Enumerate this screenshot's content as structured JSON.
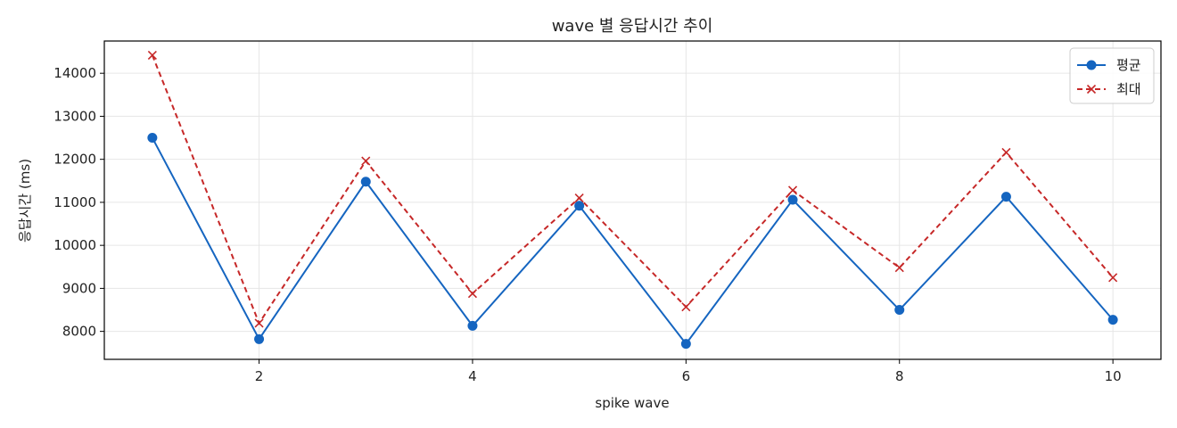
{
  "chart_data": {
    "type": "line",
    "title": "wave 별 응답시간 추이",
    "xlabel": "spike wave",
    "ylabel": "응답시간 (ms)",
    "x": [
      1,
      2,
      3,
      4,
      5,
      6,
      7,
      8,
      9,
      10
    ],
    "xlim": [
      0.55,
      10.45
    ],
    "ylim": [
      7350,
      14750
    ],
    "xticks": [
      2,
      4,
      6,
      8,
      10
    ],
    "yticks": [
      8000,
      9000,
      10000,
      11000,
      12000,
      13000,
      14000
    ],
    "grid": true,
    "legend_position": "top-right",
    "series": [
      {
        "name": "평균",
        "color": "#1565c0",
        "line_style": "solid",
        "marker": "circle",
        "values": [
          12500,
          7820,
          11480,
          8130,
          10920,
          7710,
          11060,
          8500,
          11130,
          8270
        ]
      },
      {
        "name": "최대",
        "color": "#c62828",
        "line_style": "dashed",
        "marker": "x",
        "values": [
          14420,
          8190,
          11960,
          8880,
          11100,
          8570,
          11280,
          9480,
          12160,
          9250
        ]
      }
    ]
  }
}
